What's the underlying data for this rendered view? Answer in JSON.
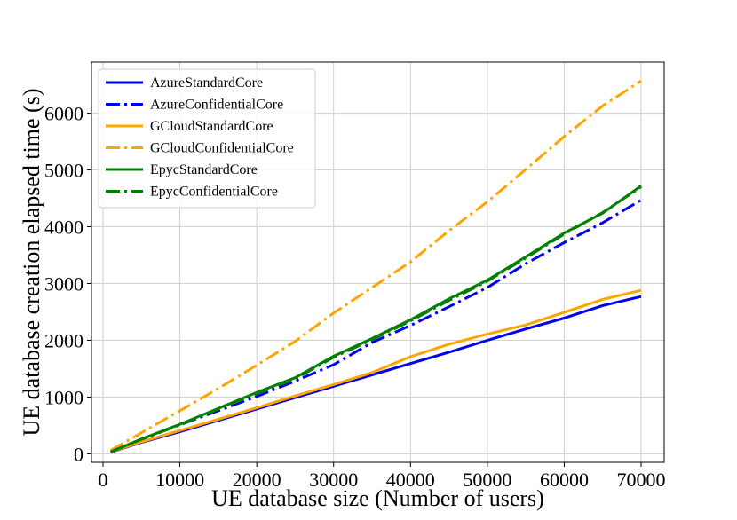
{
  "chart_data": {
    "type": "line",
    "title": "",
    "xlabel": "UE database size (Number of users)",
    "ylabel": "UE database creation elapsed time (s)",
    "xlim": [
      -1500,
      73000
    ],
    "ylim": [
      -150,
      6900
    ],
    "grid": true,
    "legend_position": "top-left",
    "xticks": [
      0,
      10000,
      20000,
      30000,
      40000,
      50000,
      60000,
      70000
    ],
    "yticks": [
      0,
      1000,
      2000,
      3000,
      4000,
      5000,
      6000
    ],
    "x": [
      1000,
      5000,
      10000,
      15000,
      20000,
      25000,
      30000,
      35000,
      40000,
      45000,
      50000,
      55000,
      60000,
      65000,
      70000
    ],
    "series": [
      {
        "name": "AzureStandardCore",
        "color": "#0000ee",
        "style": "solid",
        "values": [
          30,
          200,
          390,
          590,
          790,
          990,
          1190,
          1390,
          1590,
          1790,
          2000,
          2200,
          2390,
          2610,
          2770
        ]
      },
      {
        "name": "AzureConfidentialCore",
        "color": "#0000ee",
        "style": "dashdot",
        "values": [
          35,
          260,
          510,
          760,
          1010,
          1280,
          1570,
          1960,
          2260,
          2590,
          2930,
          3350,
          3720,
          4070,
          4470
        ]
      },
      {
        "name": "GCloudStandardCore",
        "color": "#ffa500",
        "style": "solid",
        "values": [
          35,
          210,
          410,
          610,
          810,
          1020,
          1220,
          1430,
          1710,
          1930,
          2110,
          2270,
          2490,
          2720,
          2880
        ]
      },
      {
        "name": "GCloudConfidentialCore",
        "color": "#ffa500",
        "style": "dashdot",
        "values": [
          60,
          370,
          760,
          1150,
          1560,
          1980,
          2480,
          2930,
          3380,
          3930,
          4440,
          5010,
          5590,
          6130,
          6570
        ]
      },
      {
        "name": "EpycStandardCore",
        "color": "#008000",
        "style": "solid",
        "values": [
          35,
          260,
          520,
          800,
          1080,
          1340,
          1720,
          2030,
          2360,
          2730,
          3060,
          3470,
          3890,
          4240,
          4720
        ]
      },
      {
        "name": "EpycConfidentialCore",
        "color": "#008000",
        "style": "dashdot",
        "values": [
          35,
          255,
          510,
          790,
          1060,
          1320,
          1700,
          2010,
          2340,
          2700,
          3040,
          3450,
          3870,
          4250,
          4700
        ]
      }
    ]
  }
}
